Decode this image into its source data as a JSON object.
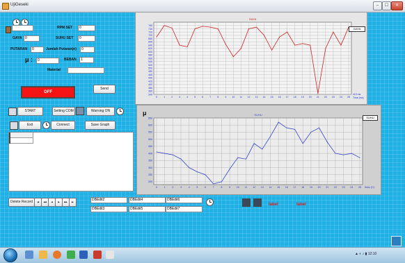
{
  "window": {
    "title": "UjiGeseki",
    "controls": [
      "–",
      "☐",
      "✕"
    ]
  },
  "form": {
    "gaya_label": "GAYA",
    "gaya_value": "0",
    "rpm_set_label": "RPM SET",
    "rpm_set_value": "0",
    "suhu_set_label": "SUHU SET",
    "suhu_set_value": "0",
    "putaran_label": "PUTARAN",
    "putaran_value": "0",
    "jumlah_putaran_label": "Jumlah Putaran(n)",
    "jumlah_putaran_value": "0",
    "beban_label": "BEBAN",
    "beban_value": "1",
    "mu_label": "μ :",
    "mu_value": "0",
    "material_label": "Material",
    "material_value": ""
  },
  "status": {
    "text": "OFF",
    "color": "#f41414"
  },
  "buttons": {
    "send": "Send",
    "start": "START",
    "setting_com": "Setting COM",
    "warning_on": "Warning ON",
    "exit": "Exit",
    "connect": "Connect",
    "save_graph": "Save Graph",
    "delete_record": "Delete Record"
  },
  "nav_buttons": [
    "|◀",
    "◀◀",
    "◀",
    "▶",
    "▶▶",
    "▶|"
  ],
  "db_fields": [
    {
      "row": 0,
      "col": 0,
      "value": "DBEdit2"
    },
    {
      "row": 0,
      "col": 1,
      "value": "DBEdit4"
    },
    {
      "row": 0,
      "col": 2,
      "value": "DBEdit6"
    },
    {
      "row": 1,
      "col": 0,
      "value": "DBEdit3"
    },
    {
      "row": 1,
      "col": 1,
      "value": "DBEdit5"
    },
    {
      "row": 1,
      "col": 2,
      "value": "DBEdit7"
    }
  ],
  "labels": {
    "label1": "label",
    "label2": "label"
  },
  "taskbar": {
    "time": "12:10"
  },
  "chart_data": [
    {
      "type": "line",
      "title": "GAYA",
      "legend": "GAYA",
      "xlabel_end": "x10 ms",
      "xlabel": "Time (ms)",
      "ylim": [
        340,
        780
      ],
      "yticks": [
        340,
        360,
        380,
        400,
        420,
        440,
        460,
        480,
        500,
        520,
        540,
        560,
        580,
        600,
        620,
        640,
        660,
        680,
        700,
        720,
        740,
        760
      ],
      "x": [
        0,
        1,
        2,
        3,
        4,
        5,
        6,
        7,
        8,
        9,
        10,
        11,
        12,
        13,
        14,
        15,
        16,
        17,
        18,
        19,
        20,
        21,
        22,
        23,
        24,
        25
      ],
      "series": [
        {
          "name": "GAYA",
          "color": "#cc2222",
          "values": [
            690,
            760,
            745,
            640,
            630,
            740,
            755,
            750,
            740,
            645,
            570,
            620,
            740,
            750,
            700,
            610,
            690,
            720,
            640,
            650,
            640,
            345,
            620,
            720,
            640,
            750
          ]
        }
      ]
    },
    {
      "type": "line",
      "title": "SUHU",
      "legend": "SUHU",
      "ylabel": "μ",
      "xlabel": "Suhu (C)",
      "ylim": [
        180,
        650
      ],
      "yticks": [
        200,
        250,
        300,
        350,
        400,
        450,
        500,
        550,
        600,
        650
      ],
      "x": [
        0,
        1,
        2,
        3,
        4,
        5,
        6,
        7,
        8,
        9,
        10,
        11,
        12,
        13,
        14,
        15,
        16,
        17,
        18,
        19,
        20,
        21,
        22,
        23,
        24,
        25
      ],
      "series": [
        {
          "name": "SUHU",
          "color": "#3344cc",
          "values": [
            410,
            400,
            390,
            360,
            300,
            270,
            250,
            185,
            200,
            290,
            370,
            360,
            470,
            430,
            520,
            620,
            580,
            570,
            470,
            550,
            580,
            480,
            400,
            390,
            400,
            370
          ]
        }
      ]
    }
  ]
}
